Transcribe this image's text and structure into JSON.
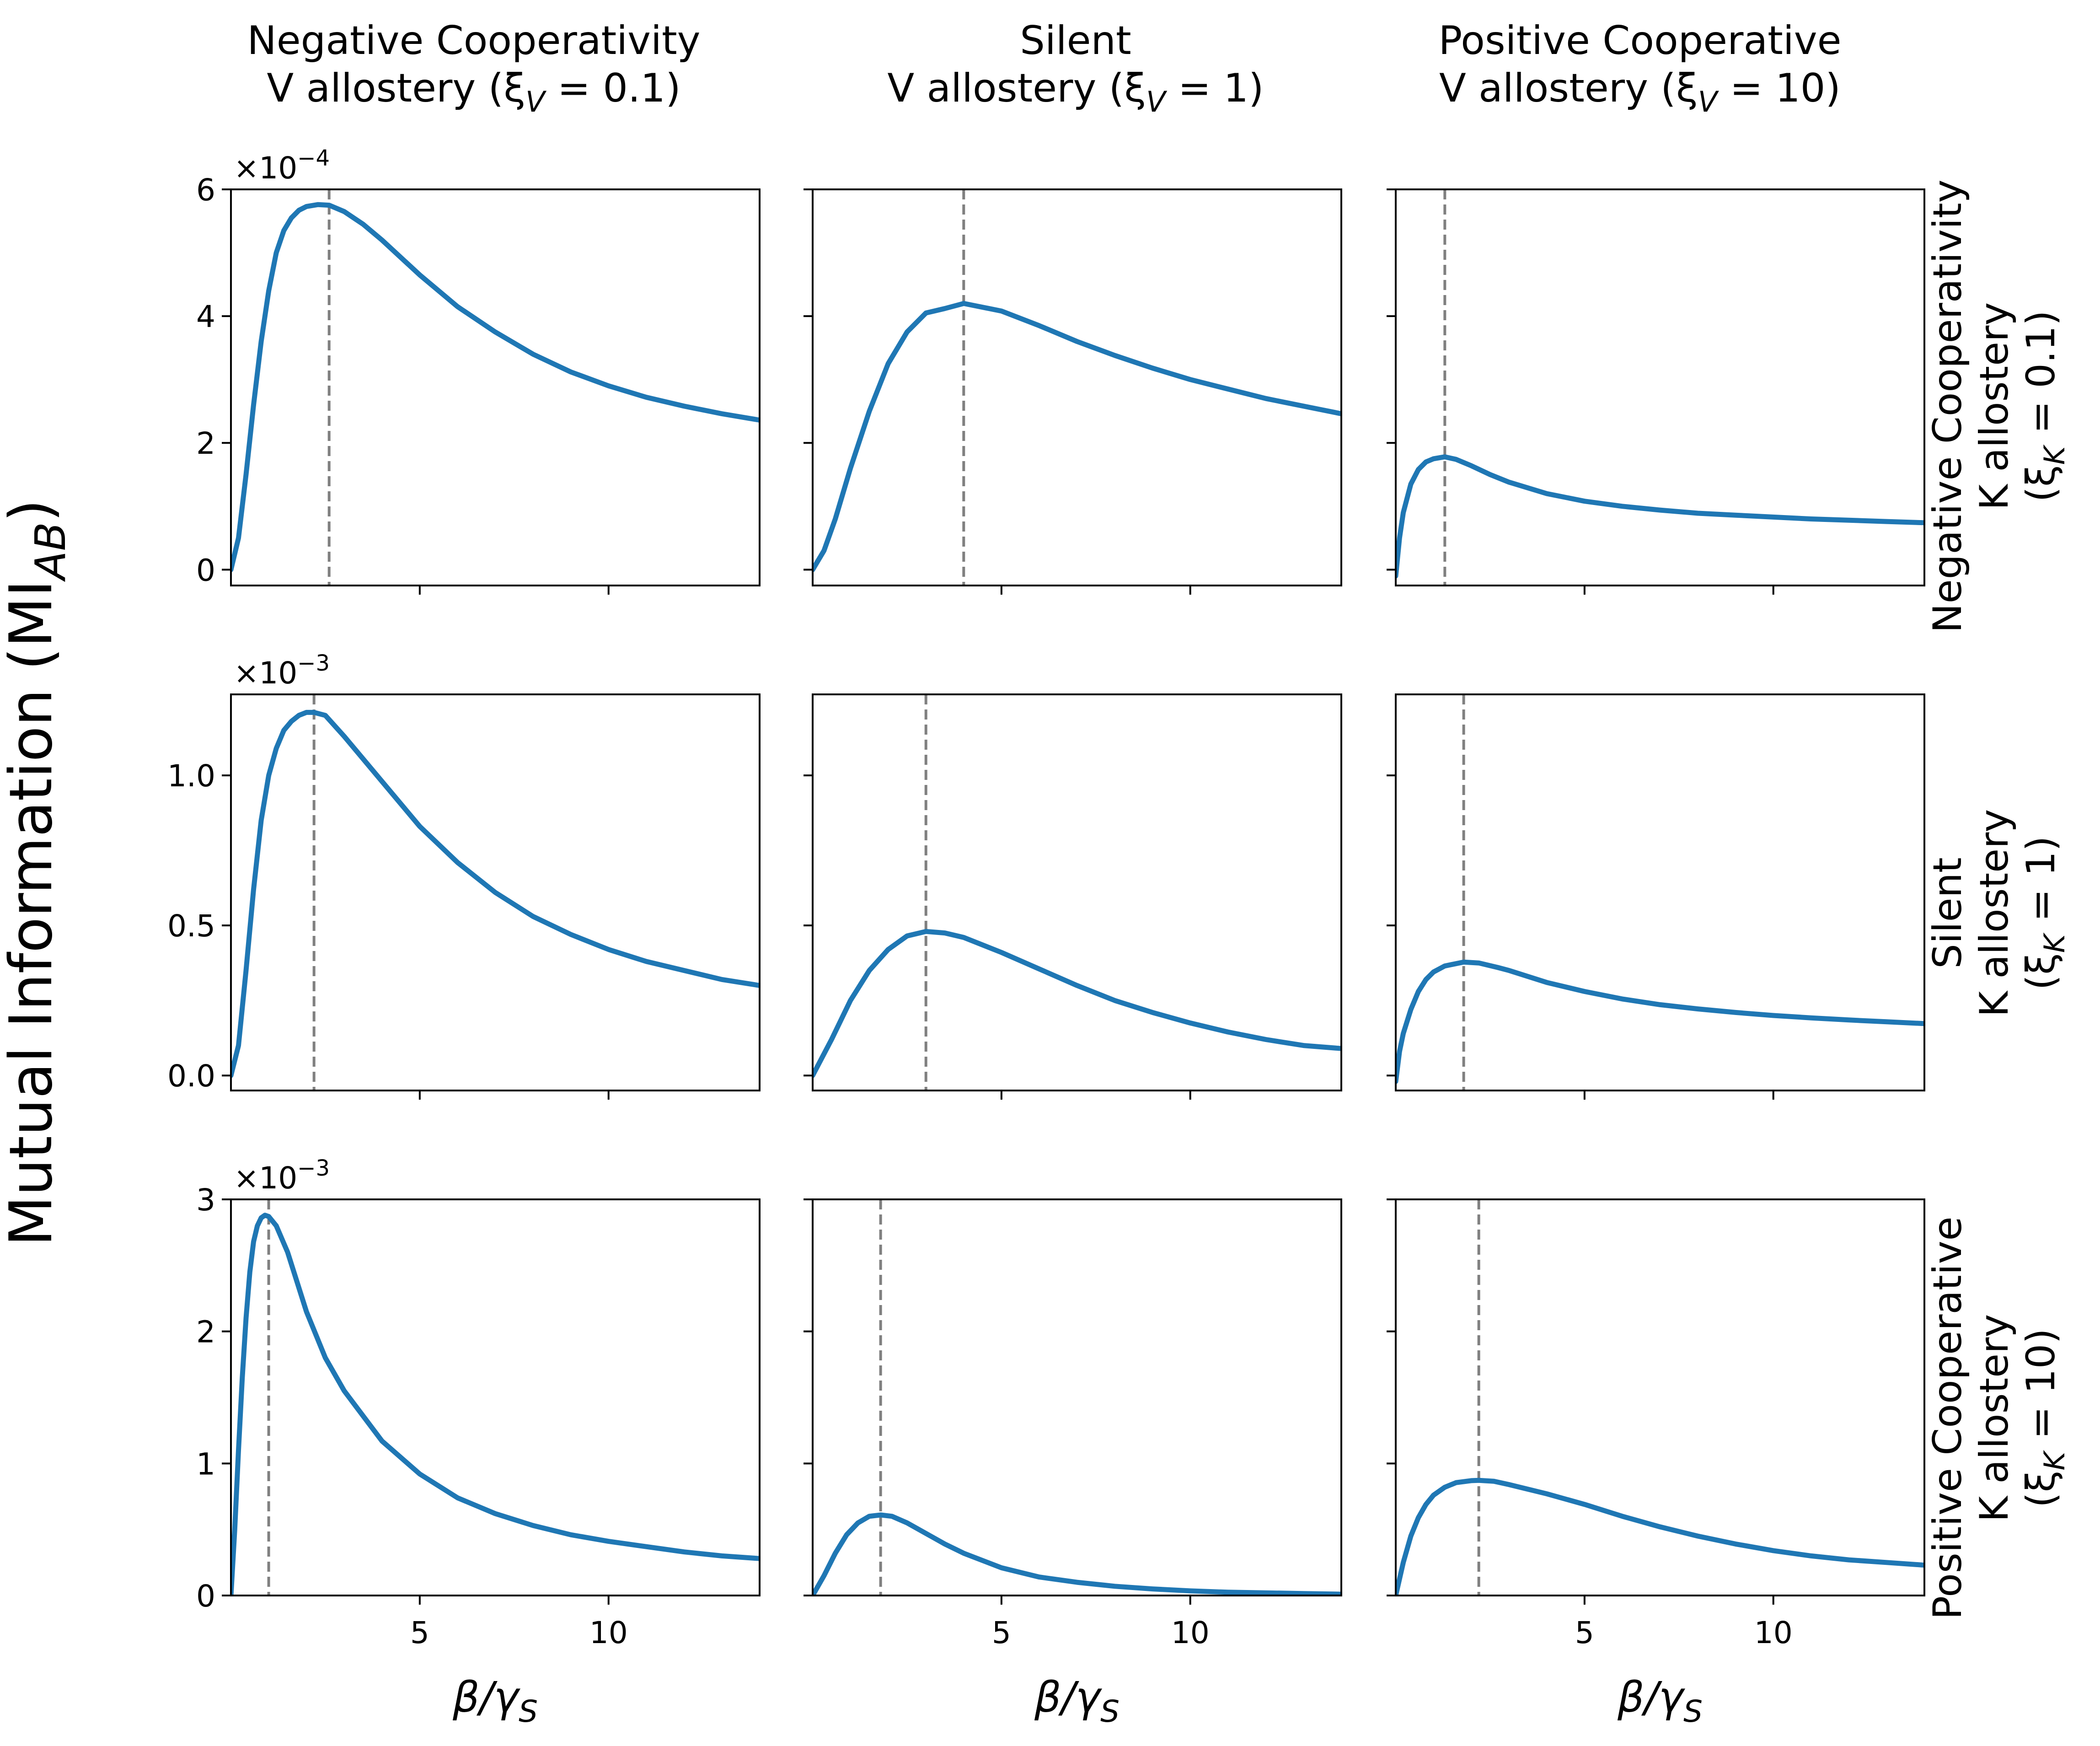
{
  "figure": {
    "ylabel": "Mutual Information (MI",
    "ylabel_sub": "AB",
    "ylabel_close": ")",
    "xlabel_main": "β/γ",
    "xlabel_sub": "S"
  },
  "columns": [
    {
      "line1": "Negative Cooperativity",
      "line2_pre": "V allostery (ξ",
      "line2_sub": "V",
      "line2_post": " = 0.1)"
    },
    {
      "line1": "Silent",
      "line2_pre": "V allostery (ξ",
      "line2_sub": "V",
      "line2_post": " = 1)"
    },
    {
      "line1": "Positive Cooperative",
      "line2_pre": "V allostery (ξ",
      "line2_sub": "V",
      "line2_post": " = 10)"
    }
  ],
  "rows": [
    {
      "line1": "Negative Cooperativity",
      "line2": "K allostery",
      "line3_pre": "(ξ",
      "line3_sub": "K",
      "line3_post": " = 0.1)"
    },
    {
      "line1": "Silent",
      "line2": "K allostery",
      "line3_pre": "(ξ",
      "line3_sub": "K",
      "line3_post": " = 1)"
    },
    {
      "line1": "Positive Cooperative",
      "line2": "K allostery",
      "line3_pre": "(ξ",
      "line3_sub": "K",
      "line3_post": " = 10)"
    }
  ],
  "colors": {
    "line": "#1f77b4",
    "vline": "#808080",
    "axes": "#000000"
  },
  "chart_data": {
    "type": "line",
    "shared_x": true,
    "shared_y": "row",
    "xlim": [
      0,
      14
    ],
    "xticks": [
      5,
      10
    ],
    "xtick_labels": [
      "5",
      "10"
    ],
    "row_axes": [
      {
        "ylim": [
          -0.25,
          6.0
        ],
        "yticks": [
          0,
          2,
          4,
          6
        ],
        "ytick_labels": [
          "0",
          "2",
          "4",
          "6"
        ],
        "offset_base": "×10",
        "offset_exp": "−4"
      },
      {
        "ylim": [
          -0.05,
          1.27
        ],
        "yticks": [
          0.0,
          0.5,
          1.0
        ],
        "ytick_labels": [
          "0.0",
          "0.5",
          "1.0"
        ],
        "offset_base": "×10",
        "offset_exp": "−3"
      },
      {
        "ylim": [
          0,
          3.0
        ],
        "yticks": [
          0,
          1,
          2,
          3
        ],
        "ytick_labels": [
          "0",
          "1",
          "2",
          "3"
        ],
        "offset_base": "×10",
        "offset_exp": "−3"
      }
    ],
    "panels": [
      {
        "row": 0,
        "col": 0,
        "peak_x": 2.6,
        "x": [
          0,
          0.2,
          0.4,
          0.6,
          0.8,
          1.0,
          1.2,
          1.4,
          1.6,
          1.8,
          2.0,
          2.3,
          2.6,
          3.0,
          3.5,
          4.0,
          5.0,
          6.0,
          7.0,
          8.0,
          9.0,
          10.0,
          11.0,
          12.0,
          13.0,
          14.0
        ],
        "y": [
          0,
          0.5,
          1.5,
          2.6,
          3.6,
          4.4,
          5.0,
          5.35,
          5.55,
          5.67,
          5.73,
          5.76,
          5.75,
          5.65,
          5.45,
          5.2,
          4.65,
          4.15,
          3.75,
          3.4,
          3.12,
          2.9,
          2.72,
          2.58,
          2.46,
          2.36
        ]
      },
      {
        "row": 0,
        "col": 1,
        "peak_x": 4.0,
        "x": [
          0,
          0.3,
          0.6,
          1.0,
          1.5,
          2.0,
          2.5,
          3.0,
          3.5,
          4.0,
          5.0,
          6.0,
          7.0,
          8.0,
          9.0,
          10.0,
          11.0,
          12.0,
          13.0,
          14.0
        ],
        "y": [
          0,
          0.3,
          0.8,
          1.6,
          2.5,
          3.25,
          3.75,
          4.05,
          4.12,
          4.2,
          4.08,
          3.85,
          3.6,
          3.38,
          3.18,
          3.0,
          2.85,
          2.7,
          2.58,
          2.46
        ]
      },
      {
        "row": 0,
        "col": 2,
        "peak_x": 1.3,
        "x": [
          0,
          0.1,
          0.2,
          0.4,
          0.6,
          0.8,
          1.0,
          1.3,
          1.6,
          2.0,
          2.5,
          3.0,
          4.0,
          5.0,
          6.0,
          7.0,
          8.0,
          9.0,
          10.0,
          11.0,
          12.0,
          13.0,
          14.0
        ],
        "y": [
          -0.1,
          0.5,
          0.9,
          1.35,
          1.58,
          1.7,
          1.75,
          1.78,
          1.74,
          1.64,
          1.5,
          1.38,
          1.2,
          1.08,
          1.0,
          0.94,
          0.89,
          0.86,
          0.83,
          0.8,
          0.78,
          0.76,
          0.74
        ]
      },
      {
        "row": 1,
        "col": 0,
        "peak_x": 2.2,
        "x": [
          0,
          0.2,
          0.4,
          0.6,
          0.8,
          1.0,
          1.2,
          1.4,
          1.6,
          1.8,
          2.0,
          2.2,
          2.5,
          3.0,
          4.0,
          5.0,
          6.0,
          7.0,
          8.0,
          9.0,
          10.0,
          11.0,
          12.0,
          13.0,
          14.0
        ],
        "y": [
          0,
          0.1,
          0.35,
          0.62,
          0.85,
          1.0,
          1.09,
          1.15,
          1.18,
          1.2,
          1.21,
          1.21,
          1.2,
          1.13,
          0.98,
          0.83,
          0.71,
          0.61,
          0.53,
          0.47,
          0.42,
          0.38,
          0.35,
          0.32,
          0.3
        ]
      },
      {
        "row": 1,
        "col": 1,
        "peak_x": 3.0,
        "x": [
          0,
          0.5,
          1.0,
          1.5,
          2.0,
          2.5,
          3.0,
          3.5,
          4.0,
          5.0,
          6.0,
          7.0,
          8.0,
          9.0,
          10.0,
          11.0,
          12.0,
          13.0,
          14.0
        ],
        "y": [
          0,
          0.12,
          0.25,
          0.35,
          0.42,
          0.465,
          0.48,
          0.475,
          0.46,
          0.41,
          0.355,
          0.3,
          0.25,
          0.21,
          0.175,
          0.145,
          0.12,
          0.1,
          0.09
        ]
      },
      {
        "row": 1,
        "col": 2,
        "peak_x": 1.8,
        "x": [
          0,
          0.1,
          0.2,
          0.4,
          0.6,
          0.8,
          1.0,
          1.3,
          1.8,
          2.2,
          2.7,
          3.0,
          4.0,
          5.0,
          6.0,
          7.0,
          8.0,
          9.0,
          10.0,
          11.0,
          12.0,
          13.0,
          14.0
        ],
        "y": [
          -0.02,
          0.08,
          0.14,
          0.22,
          0.28,
          0.32,
          0.345,
          0.365,
          0.378,
          0.375,
          0.36,
          0.35,
          0.31,
          0.28,
          0.255,
          0.236,
          0.222,
          0.21,
          0.2,
          0.192,
          0.185,
          0.179,
          0.173
        ]
      },
      {
        "row": 2,
        "col": 0,
        "peak_x": 1.0,
        "x": [
          0,
          0.1,
          0.2,
          0.3,
          0.4,
          0.5,
          0.6,
          0.7,
          0.8,
          0.9,
          1.0,
          1.2,
          1.5,
          2.0,
          2.5,
          3.0,
          4.0,
          5.0,
          6.0,
          7.0,
          8.0,
          9.0,
          10.0,
          11.0,
          12.0,
          13.0,
          14.0
        ],
        "y": [
          0,
          0.5,
          1.1,
          1.65,
          2.1,
          2.45,
          2.68,
          2.8,
          2.86,
          2.88,
          2.87,
          2.8,
          2.6,
          2.15,
          1.8,
          1.55,
          1.17,
          0.92,
          0.74,
          0.62,
          0.53,
          0.46,
          0.41,
          0.37,
          0.33,
          0.3,
          0.28
        ]
      },
      {
        "row": 2,
        "col": 1,
        "peak_x": 1.8,
        "x": [
          0,
          0.3,
          0.6,
          0.9,
          1.2,
          1.5,
          1.8,
          2.1,
          2.5,
          3.0,
          3.5,
          4.0,
          5.0,
          6.0,
          7.0,
          8.0,
          9.0,
          10.0,
          11.0,
          12.0,
          13.0,
          14.0
        ],
        "y": [
          0,
          0.15,
          0.32,
          0.46,
          0.55,
          0.6,
          0.61,
          0.6,
          0.55,
          0.47,
          0.39,
          0.32,
          0.21,
          0.14,
          0.1,
          0.07,
          0.05,
          0.035,
          0.025,
          0.02,
          0.015,
          0.01
        ]
      },
      {
        "row": 2,
        "col": 2,
        "peak_x": 2.2,
        "x": [
          0,
          0.2,
          0.4,
          0.6,
          0.8,
          1.0,
          1.3,
          1.6,
          2.0,
          2.2,
          2.6,
          3.0,
          4.0,
          5.0,
          6.0,
          7.0,
          8.0,
          9.0,
          10.0,
          11.0,
          12.0,
          13.0,
          14.0
        ],
        "y": [
          0,
          0.25,
          0.45,
          0.59,
          0.69,
          0.76,
          0.82,
          0.855,
          0.87,
          0.872,
          0.865,
          0.84,
          0.77,
          0.69,
          0.6,
          0.52,
          0.45,
          0.39,
          0.34,
          0.3,
          0.27,
          0.25,
          0.23
        ]
      }
    ]
  }
}
